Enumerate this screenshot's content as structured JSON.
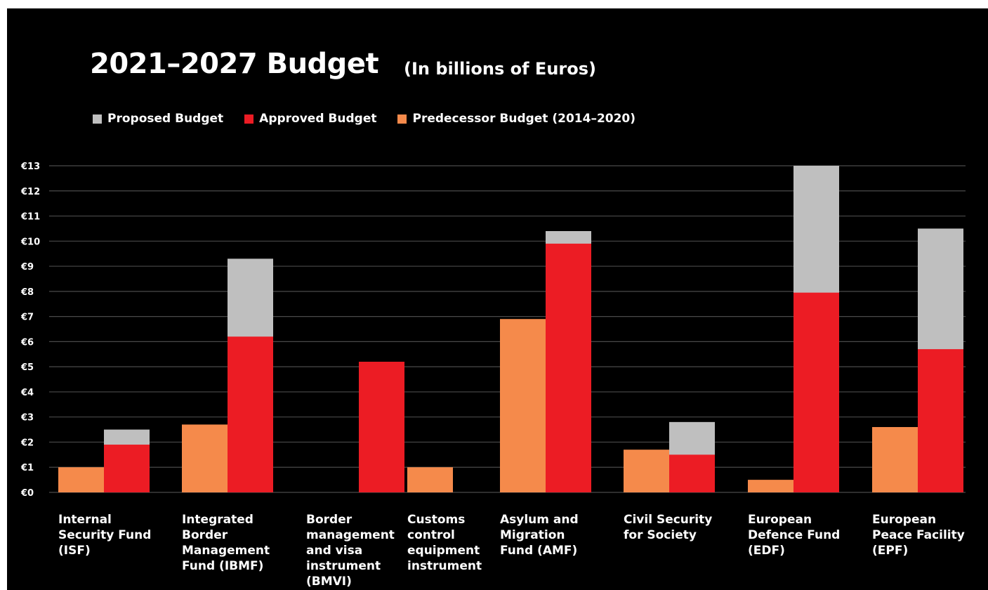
{
  "title": "2021–2027 Budget",
  "subtitle": "(In billions of Euros)",
  "colors": {
    "background": "#000000",
    "text": "#ffffff",
    "gridline": "#4a4a4a",
    "proposed": "#bfbfbf",
    "approved": "#ec1c24",
    "predecessor": "#f58a4b"
  },
  "legend": [
    {
      "label": "Proposed Budget",
      "color": "#bfbfbf"
    },
    {
      "label": "Approved Budget",
      "color": "#ec1c24"
    },
    {
      "label": "Predecessor Budget (2014–2020)",
      "color": "#f58a4b"
    }
  ],
  "chart_data": {
    "type": "bar",
    "title": "2021–2027 Budget",
    "subtitle": "(In billions of Euros)",
    "categories": [
      "Internal\nSecurity Fund\n(ISF)",
      "Integrated\nBorder\nManagement\nFund (IBMF)",
      "Border\nmanagement\nand visa\ninstrument\n(BMVI)",
      "Customs\ncontrol\nequipment\ninstrument",
      "Asylum and\nMigration\nFund (AMF)",
      "Civil Security\nfor Society",
      "European\nDefence Fund\n(EDF)",
      "European\nPeace Facility\n(EPF)"
    ],
    "series": [
      {
        "name": "Proposed Budget",
        "color": "#bfbfbf",
        "values": [
          2.5,
          9.3,
          null,
          null,
          10.4,
          2.8,
          13.0,
          10.5
        ]
      },
      {
        "name": "Approved Budget",
        "color": "#ec1c24",
        "values": [
          1.9,
          6.2,
          5.2,
          1.0,
          9.9,
          1.5,
          7.95,
          5.7
        ]
      },
      {
        "name": "Predecessor Budget (2014–2020)",
        "color": "#f58a4b",
        "values": [
          1.0,
          2.7,
          null,
          1.0,
          6.9,
          1.7,
          0.5,
          2.6
        ]
      }
    ],
    "bar_layout": {
      "description": "Approved bar drawn in front of the Proposed bar in the same slot; Predecessor bar in the adjacent slot",
      "predecessor_slot": [
        "left",
        "left",
        "none",
        "left",
        "left",
        "left",
        "left",
        "left"
      ],
      "approved_slot": [
        "right",
        "right",
        "right",
        "none",
        "right",
        "right",
        "right",
        "right"
      ]
    },
    "ylim": [
      0,
      13
    ],
    "yticks": [
      0,
      1,
      2,
      3,
      4,
      5,
      6,
      7,
      8,
      9,
      10,
      11,
      12,
      13
    ],
    "ytick_labels": [
      "€0",
      "€1",
      "€2",
      "€3",
      "€4",
      "€5",
      "€6",
      "€7",
      "€8",
      "€9",
      "€10",
      "€11",
      "€12",
      "€13"
    ],
    "grid": true,
    "legend_position": "top-left"
  }
}
